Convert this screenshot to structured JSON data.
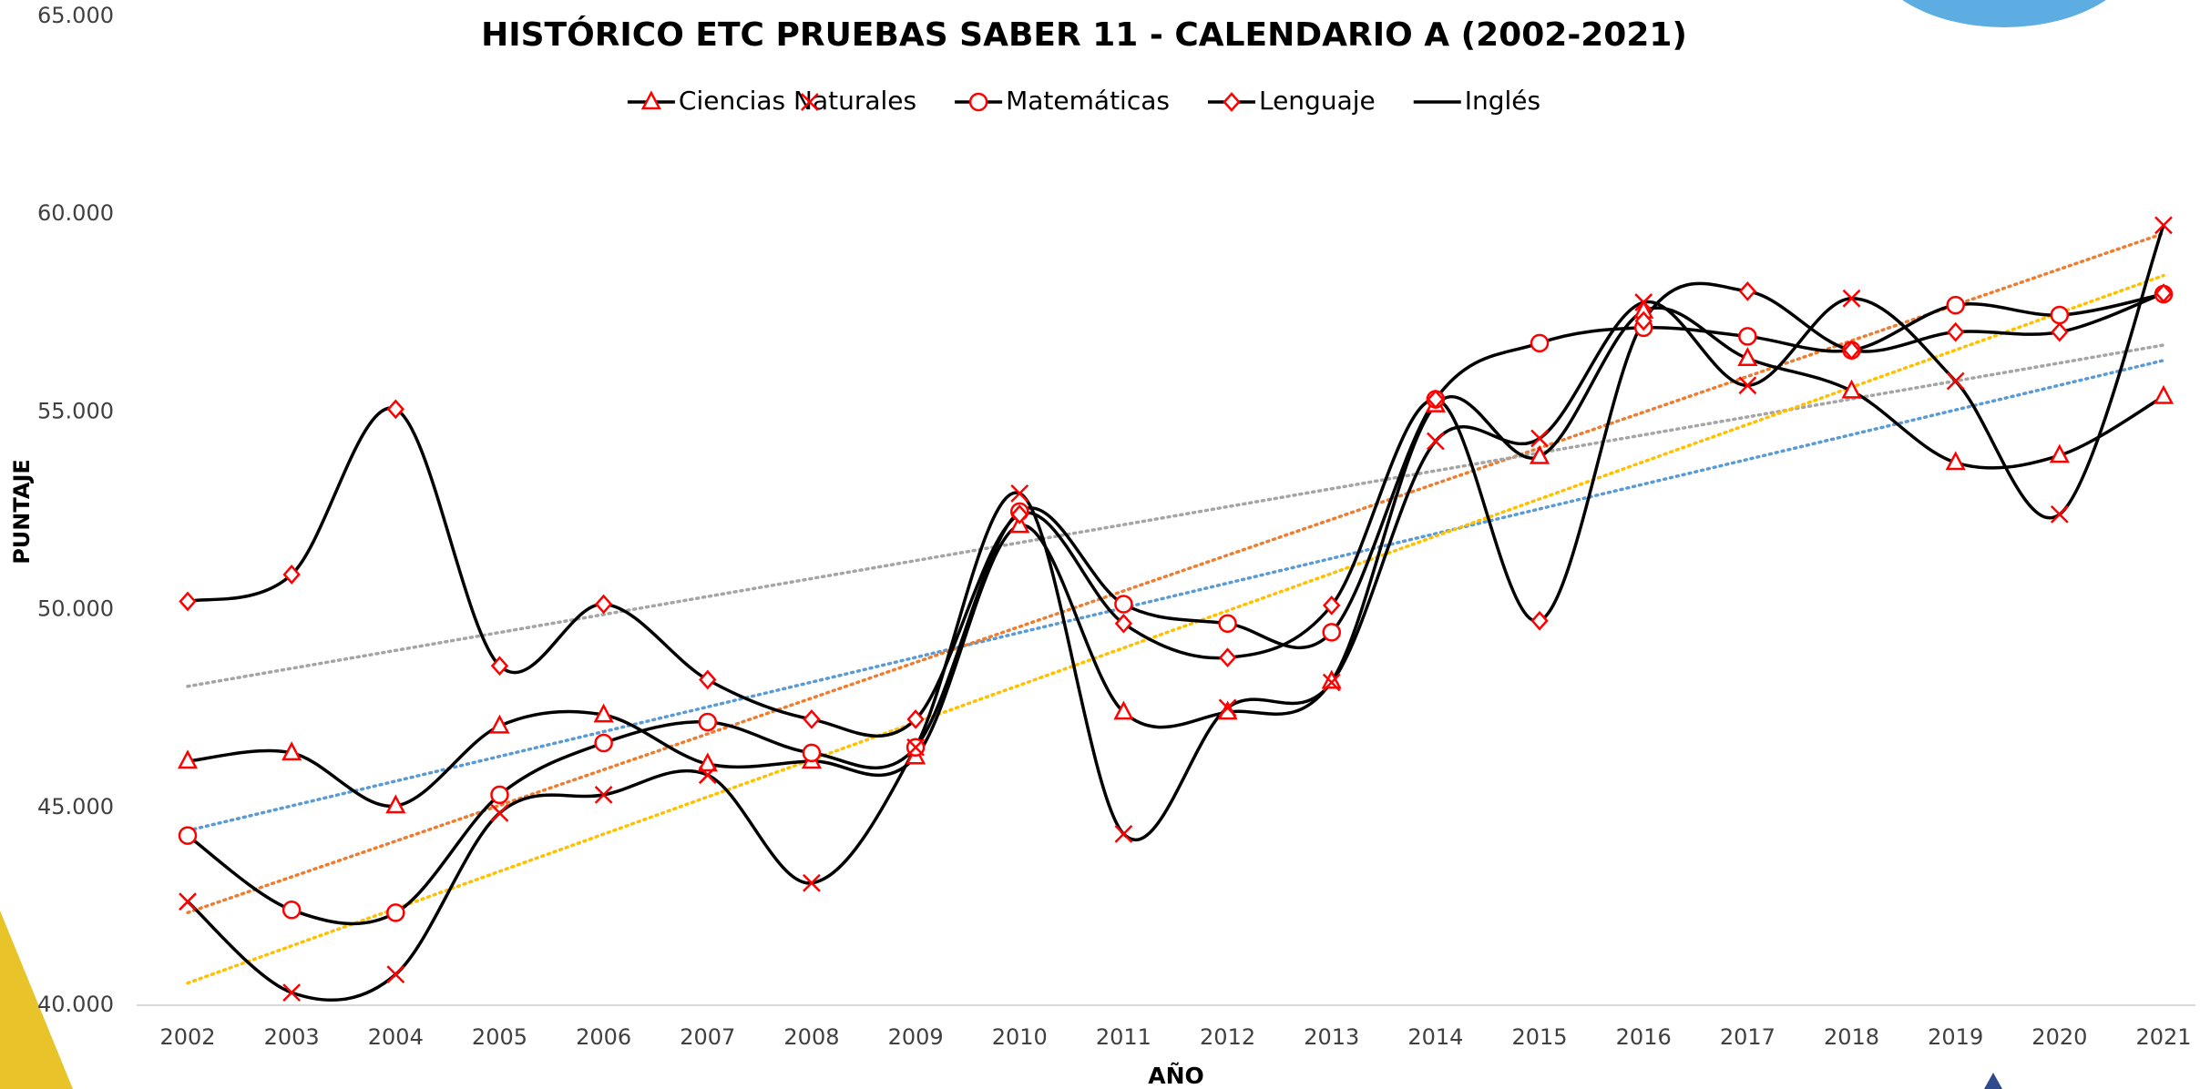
{
  "chart_data": {
    "type": "line",
    "title": "HISTÓRICO ETC PRUEBAS SABER 11 - CALENDARIO A (2002-2021)",
    "x_label": "AÑO",
    "y_label": "PUNTAJE",
    "categories": [
      "2002",
      "2003",
      "2004",
      "2005",
      "2006",
      "2007",
      "2008",
      "2009",
      "2010",
      "2011",
      "2012",
      "2013",
      "2014",
      "2015",
      "2016",
      "2017",
      "2018",
      "2019",
      "2020",
      "2021"
    ],
    "series": [
      {
        "name": "Ciencias Naturales",
        "color": "#000000",
        "marker": "triangle",
        "marker_color": "#ff0000",
        "trendline_color": "#5b9bd5",
        "values": [
          46.17,
          46.38,
          45.04,
          47.06,
          47.34,
          46.1,
          46.17,
          46.28,
          52.13,
          47.41,
          47.41,
          48.19,
          55.18,
          53.87,
          57.55,
          56.35,
          55.53,
          53.72,
          53.9,
          55.39
        ]
      },
      {
        "name": "Matemáticas",
        "color": "#000000",
        "marker": "circle",
        "marker_color": "#ff0000",
        "trendline_color": "#ed7d31",
        "values": [
          44.29,
          42.41,
          42.34,
          45.32,
          46.63,
          47.16,
          46.38,
          46.52,
          52.48,
          50.14,
          49.65,
          49.43,
          55.32,
          56.74,
          57.13,
          56.91,
          56.56,
          57.7,
          57.45,
          57.98
        ]
      },
      {
        "name": "Lenguaje",
        "color": "#000000",
        "marker": "diamond",
        "marker_color": "#ff0000",
        "trendline_color": "#a5a5a5",
        "values": [
          50.21,
          50.89,
          55.07,
          48.58,
          50.14,
          48.23,
          47.23,
          47.23,
          52.41,
          49.65,
          48.79,
          50.11,
          55.32,
          49.72,
          57.3,
          58.05,
          56.56,
          57.02,
          57.02,
          58.0
        ]
      },
      {
        "name": "Inglés",
        "color": "#000000",
        "marker": "x",
        "marker_color": "#ff0000",
        "trendline_color": "#ffc000",
        "values": [
          42.62,
          40.32,
          40.78,
          44.86,
          45.32,
          45.82,
          43.09,
          46.52,
          52.94,
          44.33,
          47.52,
          48.16,
          54.26,
          54.33,
          57.77,
          55.67,
          57.87,
          55.78,
          52.41,
          59.72
        ]
      }
    ],
    "ylim": [
      40,
      65
    ],
    "yticks": [
      {
        "value": 40,
        "label": "40.000"
      },
      {
        "value": 45,
        "label": "45.000"
      },
      {
        "value": 50,
        "label": "50.000"
      },
      {
        "value": 55,
        "label": "55.000"
      },
      {
        "value": 60,
        "label": "60.000"
      },
      {
        "value": 65,
        "label": "65.000"
      }
    ],
    "grid": false,
    "smooth": true,
    "trendlines": true,
    "legend": "top"
  }
}
